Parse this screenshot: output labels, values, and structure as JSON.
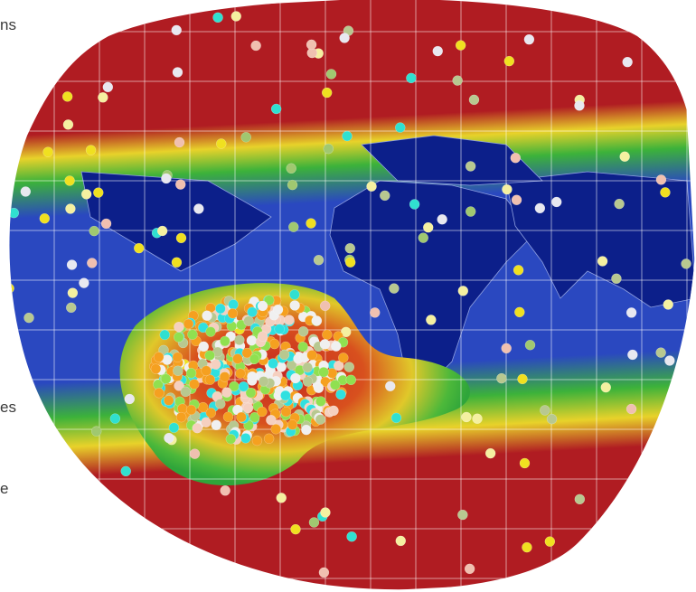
{
  "side_text": [
    "ns",
    "es",
    "e"
  ]
}
